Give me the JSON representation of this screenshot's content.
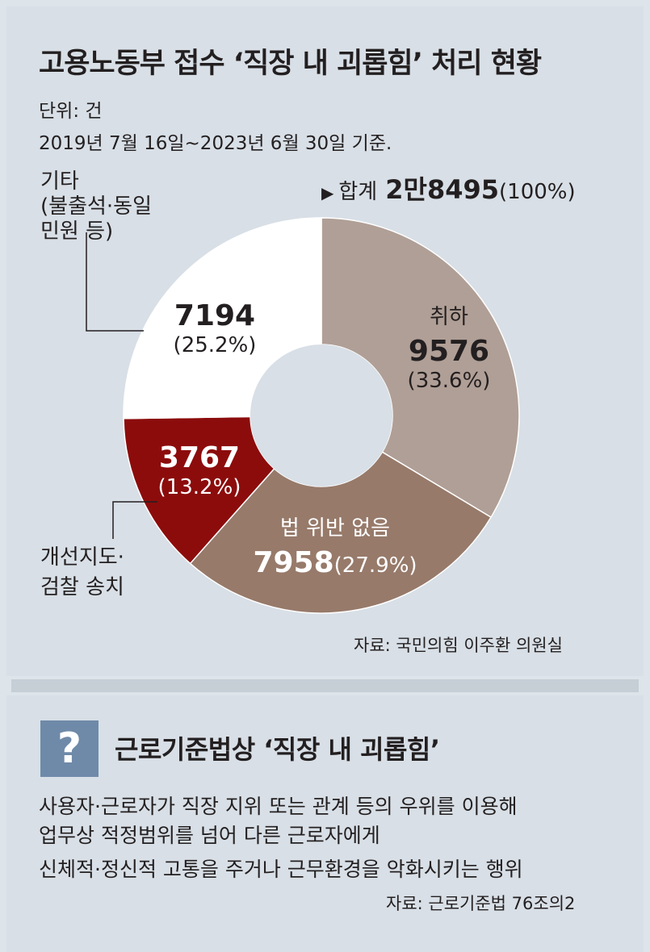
{
  "header": {
    "title": "고용노동부 접수 ‘직장 내 괴롭힘’ 처리 현황",
    "unit": "단위: 건",
    "period": "2019년 7월 16일~2023년 6월 30일 기준."
  },
  "total": {
    "marker": "▶",
    "label": "합계",
    "value": "2만8495",
    "pct": "(100%)"
  },
  "chart_data": {
    "type": "pie",
    "title": "고용노동부 접수 ‘직장 내 괴롭힘’ 처리 현황",
    "unit": "건",
    "slices": [
      {
        "label": "취하",
        "value": 9576,
        "value_text": "9576",
        "pct": 33.6,
        "pct_text": "(33.6%)",
        "color": "#b09f96"
      },
      {
        "label": "법 위반 없음",
        "value": 7958,
        "value_text": "7958",
        "pct": 27.9,
        "pct_text": "(27.9%)",
        "color": "#977a6a"
      },
      {
        "label": "개선지도·검찰 송치",
        "value": 3767,
        "value_text": "3767",
        "pct": 13.2,
        "pct_text": "(13.2%)",
        "color": "#8c0c0c"
      },
      {
        "label": "기타 (불출석·동일 민원 등)",
        "value": 7194,
        "value_text": "7194",
        "pct": 25.2,
        "pct_text": "(25.2%)",
        "color": "#ffffff"
      }
    ]
  },
  "callouts": {
    "etc_lines": [
      "기타",
      "(불출석·동일",
      "민원 등)"
    ],
    "guidance_lines": [
      "개선지도·",
      "검찰 송치"
    ]
  },
  "source1": "자료: 국민의힘 이주환 의원실",
  "definition": {
    "icon": "?",
    "title": "근로기준법상 ‘직장 내 괴롭힘’",
    "lines": [
      "사용자·근로자가 직장 지위 또는 관계 등의 우위를 이용해",
      "업무상 적정범위를 넘어 다른 근로자에게",
      "신체적·정신적 고통을 주거나 근무환경을 악화시키는 행위"
    ],
    "source": "자료: 근로기준법 76조의2"
  }
}
